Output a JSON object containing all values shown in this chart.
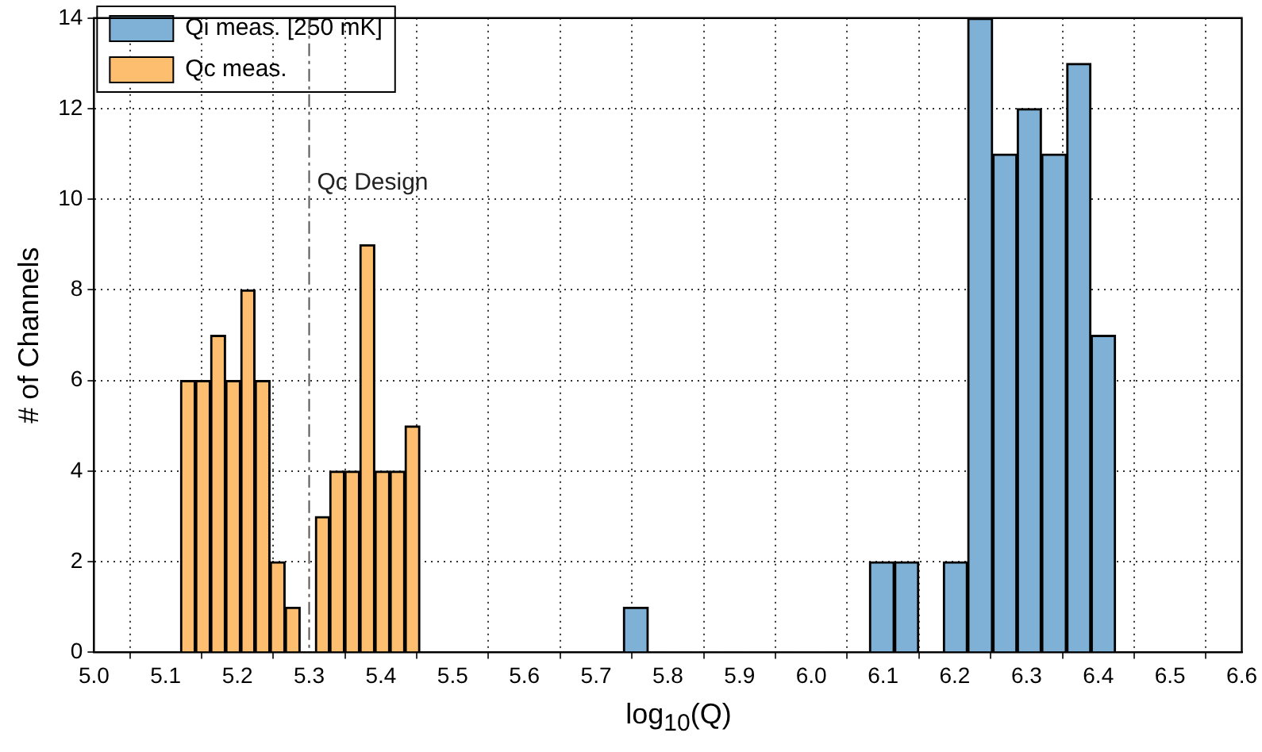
{
  "chart_data": {
    "type": "bar",
    "xlabel": "log$_{10}$(Q)",
    "ylabel": "# of Channels",
    "series": [
      {
        "name": "Qi meas. [250 mK]",
        "color": "#7fb0d5",
        "x": [
          5.755,
          5.79,
          5.824,
          5.858,
          5.892,
          5.927,
          5.961,
          5.995,
          6.03,
          6.064,
          6.098,
          6.133,
          6.167,
          6.201,
          6.235,
          6.27,
          6.304,
          6.338,
          6.373,
          6.407
        ],
        "values": [
          1,
          0,
          0,
          0,
          0,
          0,
          0,
          0,
          0,
          0,
          2,
          2,
          0,
          2,
          14,
          11,
          12,
          11,
          13,
          7
        ]
      },
      {
        "name": "Qc meas.",
        "color": "#fdbf6f",
        "x": [
          5.131,
          5.152,
          5.173,
          5.194,
          5.215,
          5.235,
          5.256,
          5.277,
          5.298,
          5.319,
          5.339,
          5.36,
          5.381,
          5.402,
          5.423,
          5.444
        ],
        "values": [
          6,
          6,
          7,
          6,
          8,
          6,
          2,
          1,
          0,
          3,
          4,
          4,
          9,
          4,
          4,
          5
        ]
      }
    ],
    "ref_lines": [
      {
        "axis": "x",
        "value": 5.3,
        "label": "Qc Design",
        "color": "#555555",
        "line_style": "dashdot"
      }
    ],
    "xlim": [
      5.0,
      6.6
    ],
    "xticks": [
      {
        "value": 5.0,
        "label": "5.0"
      },
      5.1,
      5.2,
      5.3,
      5.4,
      5.5,
      5.6,
      5.7,
      5.8,
      5.9,
      {
        "value": 6.0,
        "label": "6.0"
      },
      6.1,
      6.2,
      6.3,
      6.4,
      6.5,
      6.6
    ],
    "ylim": [
      0,
      14
    ],
    "yticks": [
      0,
      2,
      4,
      6,
      8,
      10,
      12,
      14
    ],
    "grid": true,
    "legend": "top left"
  }
}
